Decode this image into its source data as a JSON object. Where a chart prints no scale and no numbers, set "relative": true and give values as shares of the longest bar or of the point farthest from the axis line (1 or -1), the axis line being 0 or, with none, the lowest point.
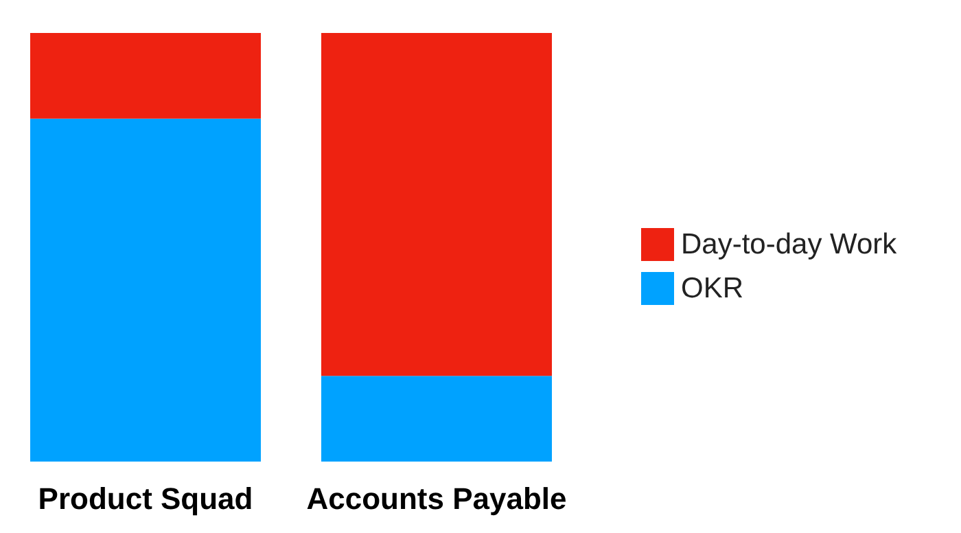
{
  "chart_data": {
    "type": "bar",
    "relative": true,
    "stacked": true,
    "categories": [
      "Product Squad",
      "Accounts Payable"
    ],
    "series": [
      {
        "name": "OKR",
        "color": "#00a2ff",
        "values": [
          0.8,
          0.2
        ]
      },
      {
        "name": "Day-to-day Work",
        "color": "#ee2211",
        "values": [
          0.2,
          0.8
        ]
      }
    ],
    "legend": "right"
  }
}
